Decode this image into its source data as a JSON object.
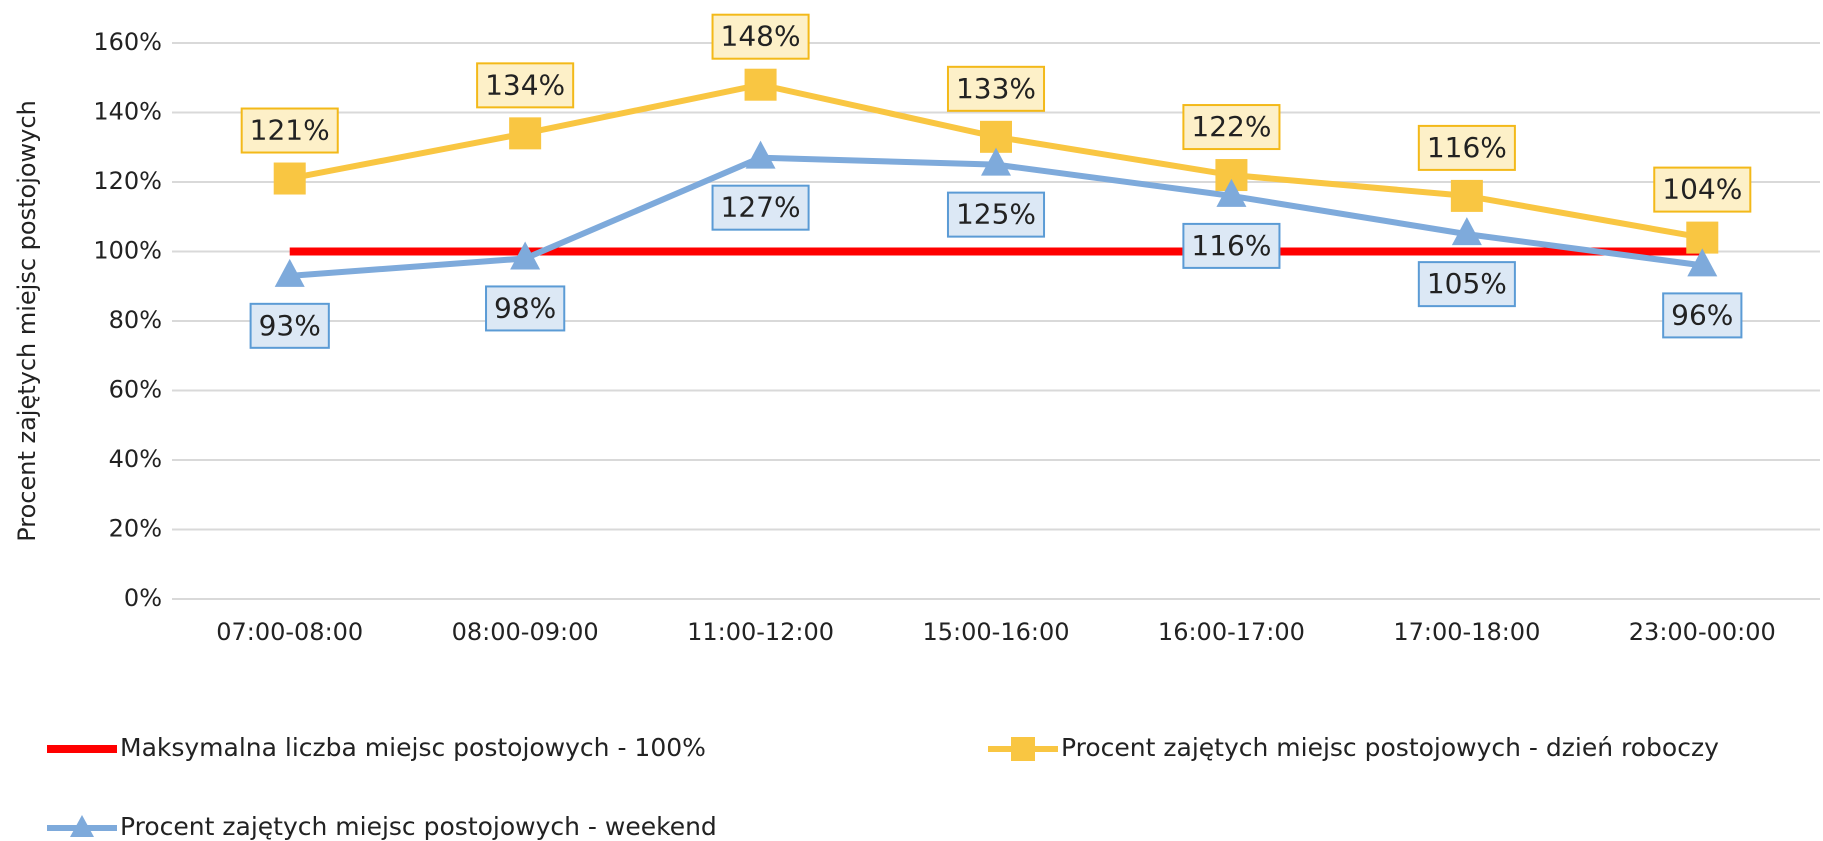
{
  "chart_data": {
    "type": "line",
    "y_label": "Procent zajętych miejsc postojowych",
    "categories": [
      "07:00-08:00",
      "08:00-09:00",
      "11:00-12:00",
      "15:00-16:00",
      "16:00-17:00",
      "17:00-18:00",
      "23:00-00:00"
    ],
    "series": [
      {
        "name": "Maksymalna liczba miejsc postojowych - 100%",
        "color": "#ff0000",
        "values": [
          100,
          100,
          100,
          100,
          100,
          100,
          100
        ]
      },
      {
        "name": "Procent zajętych miejsc postojowych - dzień roboczy",
        "color": "#f9c642",
        "marker": "square",
        "values": [
          121,
          134,
          148,
          133,
          122,
          116,
          104
        ],
        "value_labels": [
          "121%",
          "134%",
          "148%",
          "133%",
          "122%",
          "116%",
          "104%"
        ]
      },
      {
        "name": "Procent zajętych miejsc postojowych - weekend",
        "color": "#7eaadb",
        "marker": "triangle",
        "values": [
          93,
          98,
          127,
          125,
          116,
          105,
          96
        ],
        "value_labels": [
          "93%",
          "98%",
          "127%",
          "125%",
          "116%",
          "105%",
          "96%"
        ]
      }
    ],
    "ylim": [
      0,
      160
    ],
    "yticks": [
      {
        "value": 0,
        "label": "0%"
      },
      {
        "value": 20,
        "label": "20%"
      },
      {
        "value": 40,
        "label": "40%"
      },
      {
        "value": 60,
        "label": "60%"
      },
      {
        "value": 80,
        "label": "80%"
      },
      {
        "value": 100,
        "label": "100%"
      },
      {
        "value": 120,
        "label": "120%"
      },
      {
        "value": 140,
        "label": "140%"
      },
      {
        "value": 160,
        "label": "160%"
      }
    ],
    "grid": true,
    "legend": "bottom"
  }
}
